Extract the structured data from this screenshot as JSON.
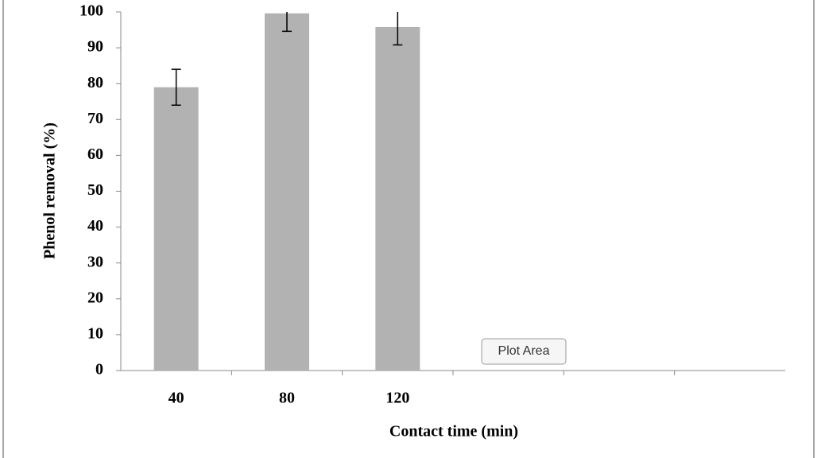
{
  "chart_data": {
    "type": "bar",
    "x_label": "Contact time (min)",
    "y_label": "Phenol removal (%)",
    "categories": [
      "40",
      "80",
      "120",
      null,
      null,
      null
    ],
    "values": [
      79,
      99.6,
      95.8,
      null,
      null,
      null
    ],
    "errors": [
      5,
      5,
      5,
      null,
      null,
      null
    ],
    "color": "#b2b2b2",
    "ylim": [
      0,
      100
    ],
    "yticks": [
      0,
      10,
      20,
      30,
      40,
      50,
      60,
      70,
      80,
      90,
      100
    ],
    "tooltip": "Plot Area"
  }
}
